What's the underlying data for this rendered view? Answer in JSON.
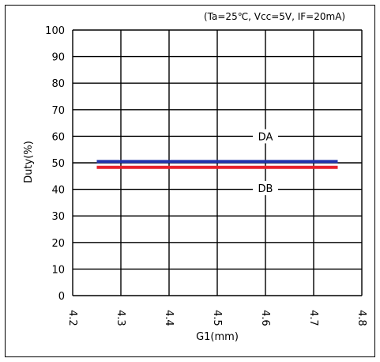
{
  "chart_data": {
    "type": "line",
    "condition_note": "(Ta=25℃, Vcc=5V, IF=20mA)",
    "xlabel": "G1(mm)",
    "ylabel": "Duty(%)",
    "xlim": [
      4.2,
      4.8
    ],
    "ylim": [
      0,
      100
    ],
    "x_ticks": [
      "4.2",
      "4.3",
      "4.4",
      "4.5",
      "4.6",
      "4.7",
      "4.8"
    ],
    "y_ticks": [
      "0",
      "10",
      "20",
      "30",
      "40",
      "50",
      "60",
      "70",
      "80",
      "90",
      "100"
    ],
    "grid": true,
    "series": [
      {
        "name": "DA",
        "color": "#2233aa",
        "x": [
          4.25,
          4.75
        ],
        "y": [
          50.5,
          50.5
        ]
      },
      {
        "name": "DB",
        "color": "#e8202a",
        "x": [
          4.25,
          4.75
        ],
        "y": [
          48.3,
          48.3
        ]
      }
    ]
  }
}
